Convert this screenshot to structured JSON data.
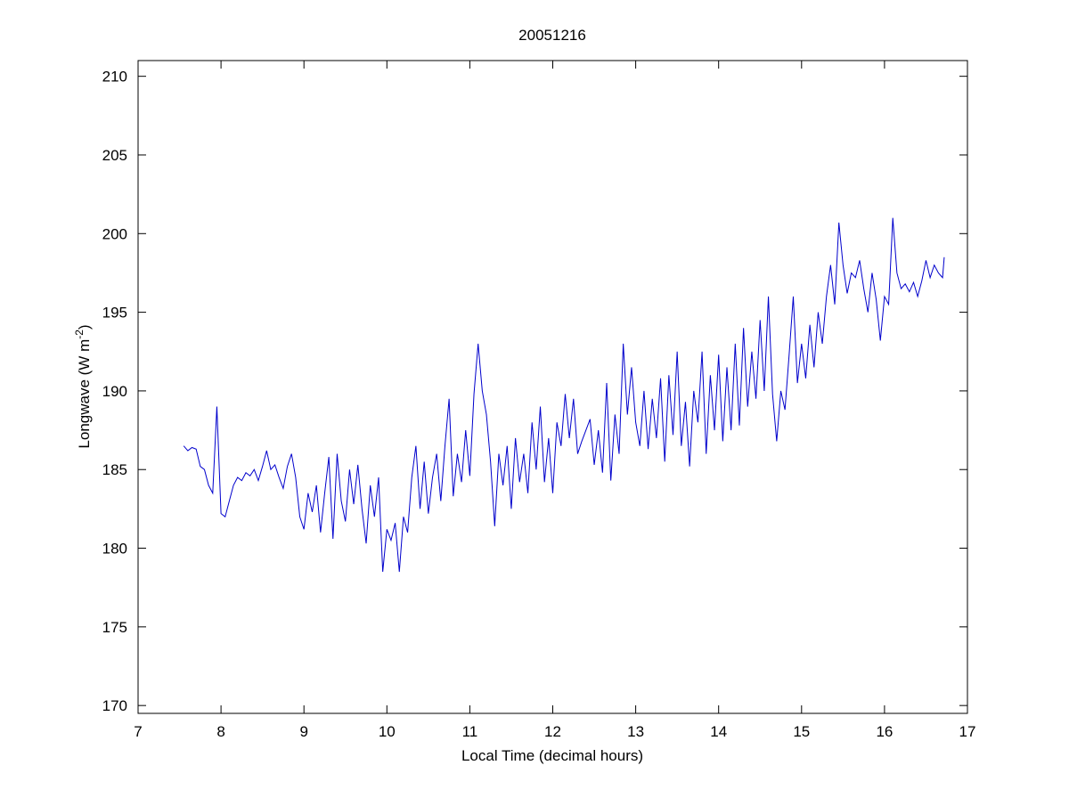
{
  "chart_data": {
    "type": "line",
    "title": "20051216",
    "xlabel": "Local Time (decimal hours)",
    "ylabel": [
      "Longwave (W m",
      "-2",
      ")"
    ],
    "xlim": [
      7,
      17
    ],
    "xticks": [
      7,
      8,
      9,
      10,
      11,
      12,
      13,
      14,
      15,
      16,
      17
    ],
    "ylim": [
      169.5,
      211
    ],
    "yticks": [
      170,
      175,
      180,
      185,
      190,
      195,
      200,
      205,
      210
    ],
    "box": true,
    "grid": false,
    "x": [
      7.55,
      7.6,
      7.65,
      7.7,
      7.75,
      7.8,
      7.85,
      7.9,
      7.95,
      8.0,
      8.05,
      8.1,
      8.15,
      8.2,
      8.25,
      8.3,
      8.35,
      8.4,
      8.45,
      8.5,
      8.55,
      8.6,
      8.65,
      8.7,
      8.75,
      8.8,
      8.85,
      8.9,
      8.95,
      9.0,
      9.05,
      9.1,
      9.15,
      9.2,
      9.25,
      9.3,
      9.35,
      9.4,
      9.45,
      9.5,
      9.55,
      9.6,
      9.65,
      9.7,
      9.75,
      9.8,
      9.85,
      9.9,
      9.95,
      10.0,
      10.05,
      10.1,
      10.15,
      10.2,
      10.25,
      10.3,
      10.35,
      10.4,
      10.45,
      10.5,
      10.55,
      10.6,
      10.65,
      10.7,
      10.75,
      10.8,
      10.85,
      10.9,
      10.95,
      11.0,
      11.05,
      11.1,
      11.15,
      11.2,
      11.25,
      11.3,
      11.35,
      11.4,
      11.45,
      11.5,
      11.55,
      11.6,
      11.65,
      11.7,
      11.75,
      11.8,
      11.85,
      11.9,
      11.95,
      12.0,
      12.05,
      12.1,
      12.15,
      12.2,
      12.25,
      12.3,
      12.35,
      12.4,
      12.45,
      12.5,
      12.55,
      12.6,
      12.65,
      12.7,
      12.75,
      12.8,
      12.85,
      12.9,
      12.95,
      13.0,
      13.05,
      13.1,
      13.15,
      13.2,
      13.25,
      13.3,
      13.35,
      13.4,
      13.45,
      13.5,
      13.55,
      13.6,
      13.65,
      13.7,
      13.75,
      13.8,
      13.85,
      13.9,
      13.95,
      14.0,
      14.05,
      14.1,
      14.15,
      14.2,
      14.25,
      14.3,
      14.35,
      14.4,
      14.45,
      14.5,
      14.55,
      14.6,
      14.65,
      14.7,
      14.75,
      14.8,
      14.85,
      14.9,
      14.95,
      15.0,
      15.05,
      15.1,
      15.15,
      15.2,
      15.25,
      15.3,
      15.35,
      15.4,
      15.45,
      15.5,
      15.55,
      15.6,
      15.65,
      15.7,
      15.75,
      15.8,
      15.85,
      15.9,
      15.95,
      16.0,
      16.05,
      16.1,
      16.15,
      16.2,
      16.25,
      16.3,
      16.35,
      16.4,
      16.45,
      16.5,
      16.55,
      16.6,
      16.65,
      16.7,
      16.72
    ],
    "series": [
      {
        "name": "Longwave",
        "color": "#0000cc",
        "values": [
          186.5,
          186.2,
          186.4,
          186.3,
          185.2,
          185.0,
          184.0,
          183.5,
          189.0,
          182.2,
          182.0,
          183.0,
          184.0,
          184.5,
          184.3,
          184.8,
          184.6,
          185.0,
          184.3,
          185.2,
          186.2,
          185.0,
          185.3,
          184.5,
          183.8,
          185.2,
          186.0,
          184.5,
          182.0,
          181.2,
          183.5,
          182.3,
          184.0,
          181.0,
          183.5,
          185.8,
          180.6,
          186.0,
          183.0,
          181.7,
          185.0,
          182.8,
          185.3,
          182.5,
          180.3,
          184.0,
          182.0,
          184.5,
          178.5,
          181.2,
          180.5,
          181.6,
          178.5,
          182.0,
          181.0,
          184.5,
          186.5,
          182.5,
          185.5,
          182.2,
          184.5,
          186.0,
          183.0,
          186.5,
          189.5,
          183.3,
          186.0,
          184.2,
          187.5,
          184.6,
          189.8,
          193.0,
          190.0,
          188.5,
          185.5,
          181.4,
          186.0,
          184.0,
          186.5,
          182.5,
          187.0,
          184.2,
          186.0,
          183.5,
          188.0,
          185.0,
          189.0,
          184.2,
          187.0,
          183.5,
          188.0,
          186.5,
          189.8,
          187.0,
          189.5,
          186.0,
          186.8,
          187.5,
          188.2,
          185.3,
          187.5,
          184.8,
          190.5,
          184.3,
          188.5,
          186.0,
          193.0,
          188.5,
          191.5,
          188.0,
          186.5,
          190.0,
          186.3,
          189.5,
          187.0,
          190.8,
          185.5,
          191.0,
          187.2,
          192.5,
          186.5,
          189.3,
          185.2,
          190.0,
          188.0,
          192.5,
          186.0,
          191.0,
          187.5,
          192.3,
          186.8,
          191.5,
          187.5,
          193.0,
          187.8,
          194.0,
          189.0,
          192.5,
          189.5,
          194.5,
          190.0,
          196.0,
          189.8,
          186.8,
          190.0,
          188.8,
          192.3,
          196.0,
          190.5,
          193.0,
          190.8,
          194.2,
          191.5,
          195.0,
          193.0,
          196.0,
          198.0,
          195.5,
          200.7,
          198.0,
          196.2,
          197.5,
          197.2,
          198.3,
          196.5,
          195.0,
          197.5,
          195.8,
          193.2,
          196.0,
          195.5,
          201.0,
          197.5,
          196.5,
          196.8,
          196.3,
          196.9,
          196.0,
          197.0,
          198.3,
          197.2,
          198.0,
          197.5,
          197.2,
          198.5
        ]
      }
    ]
  }
}
